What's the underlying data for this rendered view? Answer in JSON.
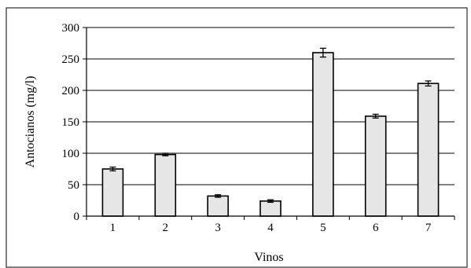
{
  "chart_data": {
    "type": "bar",
    "categories": [
      "1",
      "2",
      "3",
      "4",
      "5",
      "6",
      "7"
    ],
    "values": [
      75,
      98,
      32,
      24,
      260,
      159,
      211
    ],
    "errors": [
      3,
      2,
      2,
      2,
      7,
      3,
      4
    ],
    "title": "",
    "xlabel": "Vinos",
    "ylabel": "Antocianos (mg/l)",
    "ylim": [
      0,
      300
    ],
    "yticks": [
      "0",
      "50",
      "100",
      "150",
      "200",
      "250",
      "300"
    ],
    "grid": true,
    "legend": "none",
    "bar_color": "#e6e6e6",
    "edge_color": "#000000"
  }
}
